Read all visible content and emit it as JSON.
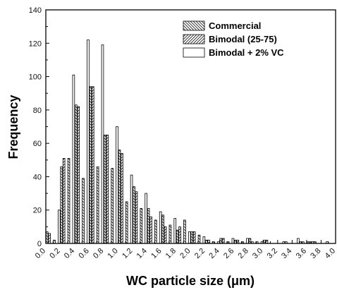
{
  "chart_data": {
    "type": "bar",
    "title": "",
    "xlabel": "WC particle size (μm)",
    "ylabel": "Frequency",
    "xlim": [
      0.0,
      4.0
    ],
    "ylim": [
      0,
      140
    ],
    "x_ticks": [
      "0.0",
      "0.2",
      "0.4",
      "0.6",
      "0.8",
      "1.0",
      "1.2",
      "1.4",
      "1.6",
      "1.8",
      "2.0",
      "2.2",
      "2.4",
      "2.6",
      "2.8",
      "3.0",
      "3.2",
      "3.4",
      "3.6",
      "3.8",
      "4.0"
    ],
    "y_ticks": [
      "0",
      "20",
      "40",
      "60",
      "80",
      "100",
      "120",
      "140"
    ],
    "bin_width": 0.1,
    "bins": [
      0.05,
      0.15,
      0.25,
      0.35,
      0.45,
      0.55,
      0.65,
      0.75,
      0.85,
      0.95,
      1.05,
      1.15,
      1.25,
      1.35,
      1.45,
      1.55,
      1.65,
      1.75,
      1.85,
      1.95,
      2.05,
      2.15,
      2.25,
      2.35,
      2.45,
      2.55,
      2.65,
      2.75,
      2.85,
      2.95,
      3.05,
      3.15,
      3.25,
      3.35,
      3.45,
      3.55,
      3.65,
      3.75,
      3.85
    ],
    "legend_position": "top-right",
    "grid": false,
    "series": [
      {
        "name": "Commercial",
        "pattern": "diagonal-backslash",
        "values": [
          7,
          2,
          46,
          51,
          83,
          39,
          94,
          46,
          65,
          45,
          56,
          25,
          34,
          21,
          21,
          14,
          17,
          11,
          8,
          14,
          7,
          5,
          2,
          1,
          3,
          1,
          2,
          1,
          3,
          1,
          2,
          0,
          0,
          1,
          0,
          1,
          1,
          1,
          0
        ]
      },
      {
        "name": "Bimodal (25-75)",
        "pattern": "diagonal-slash",
        "values": [
          6,
          0,
          51,
          0,
          82,
          0,
          94,
          0,
          65,
          0,
          54,
          0,
          31,
          0,
          16,
          0,
          10,
          0,
          10,
          0,
          7,
          0,
          2,
          0,
          3,
          0,
          2,
          0,
          1,
          0,
          2,
          0,
          0,
          0,
          0,
          1,
          1,
          0,
          0
        ]
      },
      {
        "name": "Bimodal + 2% VC",
        "pattern": "none",
        "values": [
          0,
          20,
          0,
          101,
          0,
          122,
          0,
          119,
          0,
          70,
          0,
          41,
          0,
          30,
          0,
          19,
          0,
          15,
          0,
          7,
          0,
          4,
          0,
          1,
          0,
          3,
          0,
          3,
          0,
          1,
          0,
          0,
          1,
          0,
          3,
          0,
          1,
          0,
          1
        ]
      }
    ]
  }
}
